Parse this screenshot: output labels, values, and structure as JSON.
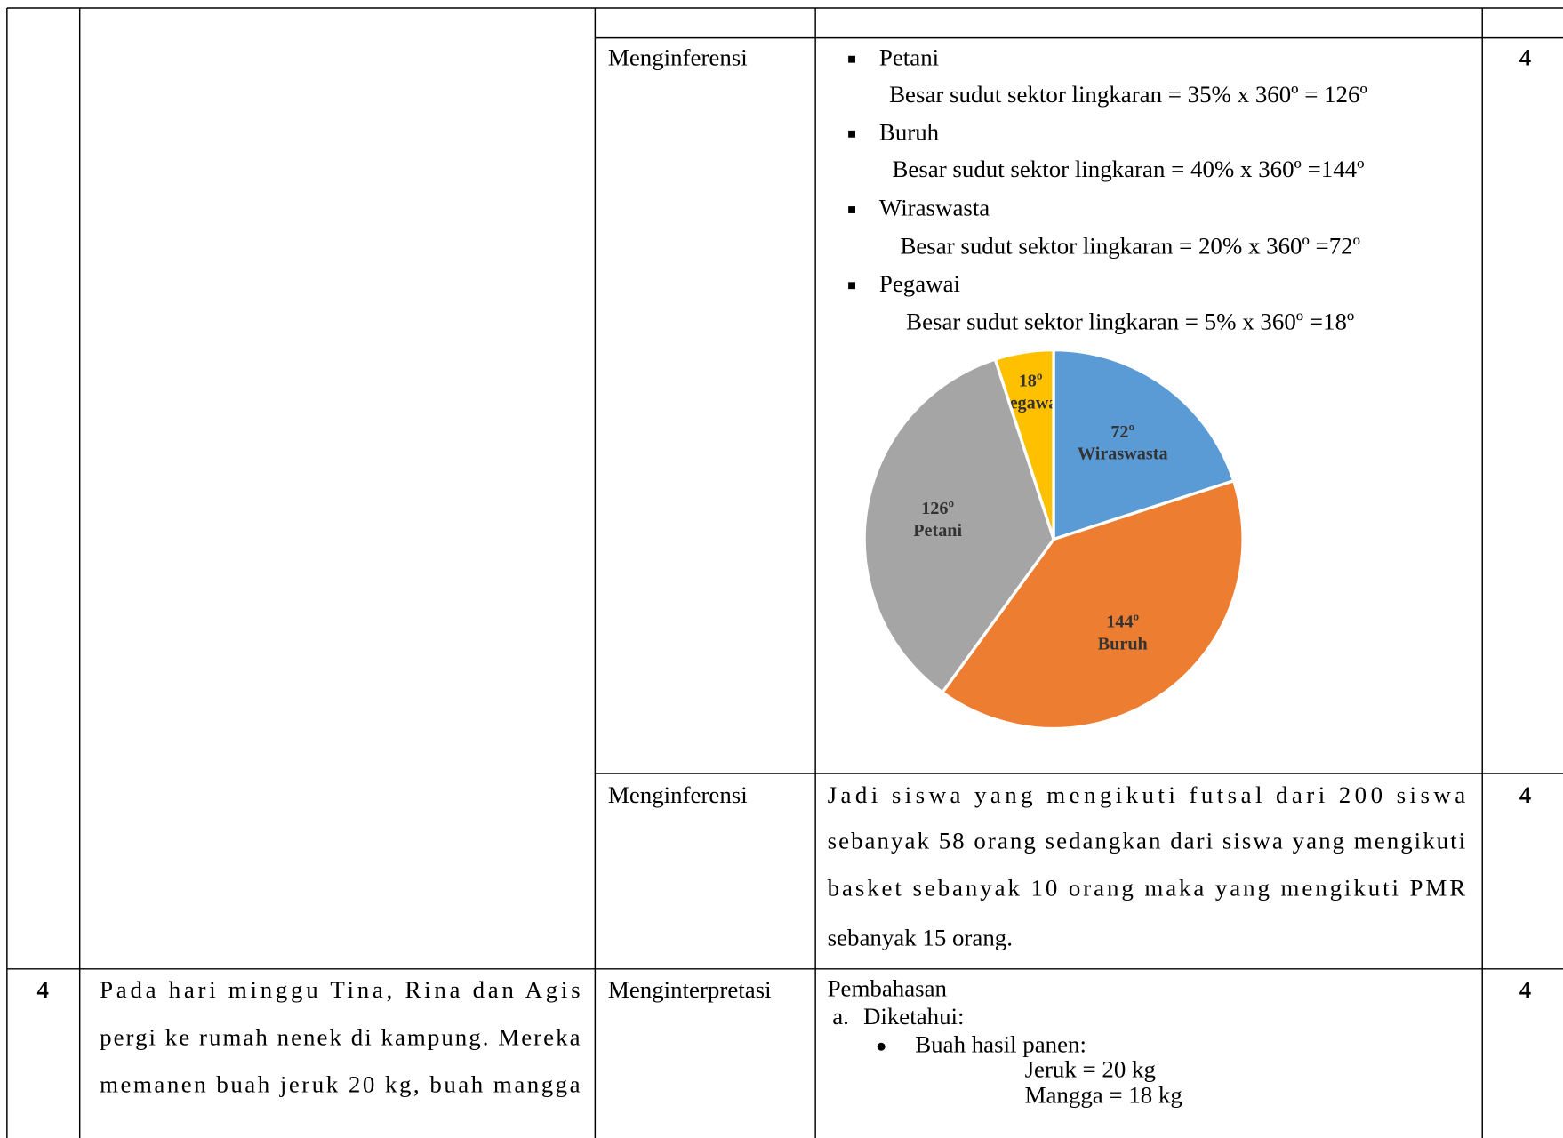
{
  "table": {
    "rows": [
      {
        "skill": "Menginferensi",
        "items": [
          {
            "bullet": "Petani",
            "formula": "Besar sudut sektor lingkaran = 35% x 360º = 126º"
          },
          {
            "bullet": "Buruh",
            "formula": "Besar sudut sektor lingkaran = 40% x 360º =144º"
          },
          {
            "bullet": "Wiraswasta",
            "formula": "Besar sudut sektor lingkaran = 20% x 360º =72º"
          },
          {
            "bullet": "Pegawai",
            "formula": "Besar sudut sektor lingkaran = 5% x 360º =18º"
          }
        ],
        "chart_data": {
          "type": "pie",
          "categories": [
            "Pegawai",
            "Wiraswasta",
            "Buruh",
            "Petani"
          ],
          "values": [
            18,
            72,
            144,
            126
          ],
          "value_labels": [
            "18º",
            "72º",
            "144º",
            "126º"
          ],
          "colors": [
            "#ffc000",
            "#5b9bd5",
            "#ed7d31",
            "#a5a5a5"
          ]
        },
        "score": 4
      },
      {
        "skill": "Menginferensi",
        "lines": [
          "Jadi siswa yang mengikuti futsal dari 200 siswa",
          "sebanyak 58 orang sedangkan dari siswa yang mengikuti",
          "basket sebanyak 10 orang maka yang mengikuti PMR",
          "sebanyak 15 orang."
        ],
        "score": 4
      },
      {
        "number": 4,
        "question_lines": [
          "Pada hari minggu Tina, Rina dan Agis",
          "pergi ke rumah nenek di kampung. Mereka",
          "memanen buah jeruk 20 kg, buah mangga"
        ],
        "skill": "Menginterpretasi",
        "answer": {
          "heading": "Pembahasan",
          "step_marker": "a.",
          "step": "Diketahui:",
          "bullet": "Buah hasil panen:",
          "facts": [
            "Jeruk = 20 kg",
            "Mangga = 18 kg"
          ]
        },
        "score": 4
      }
    ]
  }
}
